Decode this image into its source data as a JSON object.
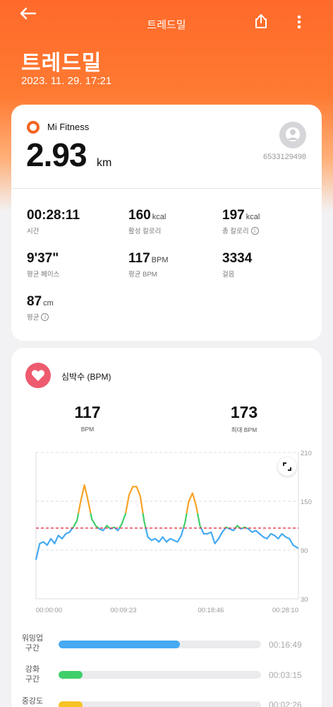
{
  "header": {
    "title": "트레드밀",
    "page_title": "트레드밀",
    "date": "2023. 11. 29. 17:21"
  },
  "summary": {
    "source": "Mi Fitness",
    "distance": "2.93",
    "distance_unit": "km",
    "user_id": "6533129498",
    "stats": [
      {
        "value": "00:28:11",
        "unit": "",
        "label": "시간",
        "info": false
      },
      {
        "value": "160",
        "unit": "kcal",
        "label": "활성 칼로리",
        "info": false
      },
      {
        "value": "197",
        "unit": "kcal",
        "label": "총 칼로리",
        "info": true
      },
      {
        "value": "9'37\"",
        "unit": "",
        "label": "평균 페이스",
        "info": false
      },
      {
        "value": "117",
        "unit": "BPM",
        "label": "평균 BPM",
        "info": false
      },
      {
        "value": "3334",
        "unit": "",
        "label": "걸음",
        "info": false
      },
      {
        "value": "87",
        "unit": "cm",
        "label": "평균",
        "info": true
      }
    ]
  },
  "heart_rate": {
    "title": "심박수 (BPM)",
    "avg_value": "117",
    "avg_label": "BPM",
    "max_value": "173",
    "max_label": "최대 BPM",
    "zones": [
      {
        "label": "워밍업\n구간",
        "time": "00:16:49",
        "fraction": 0.6,
        "color": "#45aaf2"
      },
      {
        "label": "강화\n구간",
        "time": "00:03:15",
        "fraction": 0.12,
        "color": "#3fcf6a"
      },
      {
        "label": "중강도",
        "time": "00:02:26",
        "fraction": 0.12,
        "color": "#f7c325"
      }
    ]
  },
  "chart_data": {
    "type": "line",
    "y_ticks": [
      "210",
      "150",
      "90",
      "30"
    ],
    "ylim": [
      30,
      210
    ],
    "x_ticks": [
      "00:00:00",
      "00:09:23",
      "00:18:46",
      "00:28:10"
    ],
    "xlim": [
      0,
      28.17
    ],
    "avg_line": 117,
    "x": [
      0,
      0.4,
      0.8,
      1.2,
      1.6,
      2.0,
      2.4,
      2.8,
      3.2,
      3.6,
      4.0,
      4.4,
      4.8,
      5.2,
      5.6,
      6.0,
      6.4,
      6.8,
      7.2,
      7.6,
      8.0,
      8.4,
      8.8,
      9.2,
      9.6,
      10.0,
      10.4,
      10.8,
      11.2,
      11.6,
      12.0,
      12.4,
      12.8,
      13.2,
      13.6,
      14.0,
      14.4,
      14.8,
      15.2,
      15.6,
      16.0,
      16.4,
      16.8,
      17.2,
      17.6,
      18.0,
      18.4,
      18.8,
      19.2,
      19.6,
      20.0,
      20.4,
      20.8,
      21.2,
      21.6,
      22.0,
      22.4,
      22.8,
      23.2,
      23.6,
      24.0,
      24.4,
      24.8,
      25.2,
      25.6,
      26.0,
      26.4,
      26.8,
      27.2,
      27.6,
      28.17
    ],
    "y": [
      78,
      98,
      100,
      96,
      104,
      98,
      108,
      104,
      110,
      112,
      118,
      126,
      150,
      170,
      150,
      128,
      120,
      116,
      114,
      120,
      116,
      118,
      114,
      122,
      134,
      158,
      168,
      168,
      156,
      126,
      106,
      102,
      104,
      100,
      106,
      100,
      104,
      102,
      100,
      108,
      124,
      150,
      160,
      144,
      120,
      110,
      110,
      112,
      98,
      104,
      112,
      118,
      116,
      114,
      120,
      116,
      118,
      116,
      112,
      114,
      110,
      106,
      104,
      110,
      108,
      104,
      110,
      106,
      104,
      96,
      92
    ],
    "color_bands": [
      {
        "from": 30,
        "to": 117,
        "color": "#45aaf2"
      },
      {
        "from": 117,
        "to": 135,
        "color": "#3fcf6a"
      },
      {
        "from": 135,
        "to": 210,
        "color": "#f7a325"
      }
    ]
  }
}
